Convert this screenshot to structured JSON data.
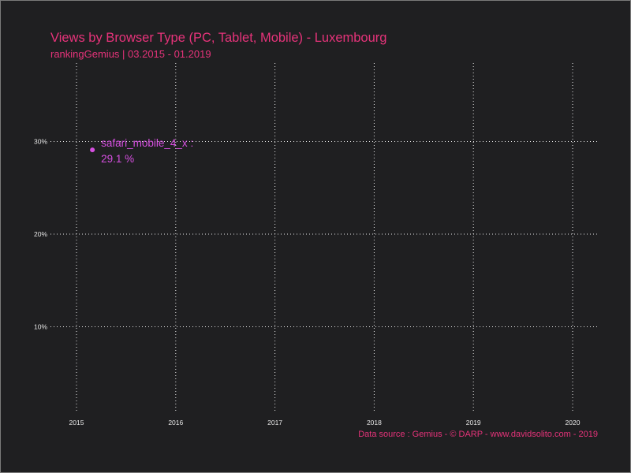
{
  "chart_data": {
    "type": "scatter",
    "title": "Views by Browser Type (PC, Tablet, Mobile) - Luxembourg",
    "subtitle": "rankingGemius | 03.2015 - 01.2019",
    "caption": "Data source : Gemius - © DARP - www.davidsolito.com - 2019",
    "xlabel": "",
    "ylabel": "",
    "x_ticks": [
      "2015",
      "2016",
      "2017",
      "2018",
      "2019",
      "2020"
    ],
    "y_ticks": [
      "10%",
      "20%",
      "30%"
    ],
    "xlim": [
      2015,
      2020
    ],
    "ylim": [
      0,
      38
    ],
    "grid": true,
    "legend": "none",
    "series": [
      {
        "name": "safari_mobile_4_x",
        "color": "#d64fe0",
        "points": [
          {
            "x": 2015.16,
            "y": 29.1,
            "label_name": "safari_mobile_4_x :",
            "label_value": "29.1 %"
          }
        ]
      }
    ],
    "colors": {
      "background": "#1f1f21",
      "title": "#e6337a",
      "grid": "#e6e6e6"
    }
  }
}
